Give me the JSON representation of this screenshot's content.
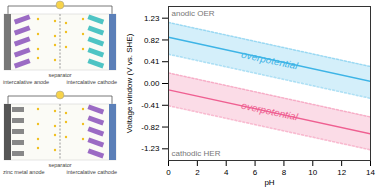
{
  "schematic": {
    "top_cell": {
      "anode": "intercalative anode",
      "separator": "separator",
      "cathode": "intercalative cathode"
    },
    "bottom_cell": {
      "anode": "zinc metal anode",
      "separator": "separator",
      "cathode": "intercalative cathode"
    }
  },
  "chart_data": {
    "type": "line",
    "x_label": "pH",
    "y_label": "Voltage window (V vs. SHE)",
    "xlim": [
      0,
      14
    ],
    "xticks": [
      0,
      2,
      4,
      6,
      8,
      10,
      12,
      14
    ],
    "ylim": [
      -1.45,
      1.45
    ],
    "yticks": [
      1.23,
      0.82,
      0.41,
      {
        "value": 0,
        "label": "0.00"
      },
      -0.41,
      -0.82,
      -1.23
    ],
    "grid": false,
    "series": [
      {
        "name": "anodic OER",
        "color": "#3db4e6",
        "x": [
          0,
          14
        ],
        "values": [
          0.87,
          0.04
        ]
      },
      {
        "name": "cathodic HER",
        "color": "#ef5f91",
        "x": [
          0,
          14
        ],
        "values": [
          -0.12,
          -0.95
        ]
      }
    ],
    "bands": [
      {
        "label": "overpotential",
        "color": "#3db4e6",
        "x": [
          0,
          14
        ],
        "lower": [
          0.55,
          -0.28
        ],
        "upper": [
          1.15,
          0.32
        ]
      },
      {
        "label": "overpotential",
        "color": "#ef5f91",
        "x": [
          0,
          14
        ],
        "lower": [
          -0.42,
          -1.25
        ],
        "upper": [
          0.2,
          -0.63
        ]
      }
    ]
  }
}
